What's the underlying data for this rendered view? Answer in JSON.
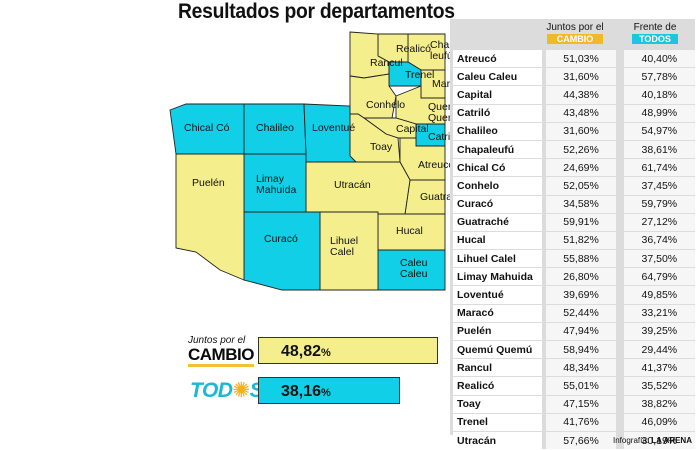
{
  "title": "Resultados por departamentos",
  "colors": {
    "jpc": "#f4ee8c",
    "todos": "#10cfe6",
    "border": "#222222"
  },
  "map_regions": [
    {
      "name": "Chapaleufú",
      "label": "Chapa\nleufú",
      "winner": "jpc"
    },
    {
      "name": "Realicó",
      "label": "Realicó",
      "winner": "jpc"
    },
    {
      "name": "Rancul",
      "label": "Rancul",
      "winner": "jpc"
    },
    {
      "name": "Trenel",
      "label": "Trenel",
      "winner": "todos"
    },
    {
      "name": "Maracó",
      "label": "Maracó",
      "winner": "jpc"
    },
    {
      "name": "Conhelo",
      "label": "Conhelo",
      "winner": "jpc"
    },
    {
      "name": "Quemú Quemú",
      "label": "Quemú\nQuemú",
      "winner": "jpc"
    },
    {
      "name": "Capital",
      "label": "Capital",
      "winner": "jpc"
    },
    {
      "name": "Catriló",
      "label": "Catriló",
      "winner": "todos"
    },
    {
      "name": "Toay",
      "label": "Toay",
      "winner": "jpc"
    },
    {
      "name": "Atreucó",
      "label": "Atreucó",
      "winner": "jpc"
    },
    {
      "name": "Guatraché",
      "label": "Guatraché",
      "winner": "jpc"
    },
    {
      "name": "Hucal",
      "label": "Hucal",
      "winner": "jpc"
    },
    {
      "name": "Caleu Caleu",
      "label": "Caleu\nCaleu",
      "winner": "todos"
    },
    {
      "name": "Lihuel Calel",
      "label": "Lihuel\nCalel",
      "winner": "jpc"
    },
    {
      "name": "Utracán",
      "label": "Utracán",
      "winner": "jpc"
    },
    {
      "name": "Curacó",
      "label": "Curacó",
      "winner": "todos"
    },
    {
      "name": "Limay Mahuida",
      "label": "Limay\nMahuida",
      "winner": "todos"
    },
    {
      "name": "Puelén",
      "label": "Puelén",
      "winner": "jpc"
    },
    {
      "name": "Chical Có",
      "label": "Chical Có",
      "winner": "todos"
    },
    {
      "name": "Chalileo",
      "label": "Chalileo",
      "winner": "todos"
    },
    {
      "name": "Loventué",
      "label": "Loventué",
      "winner": "todos"
    }
  ],
  "summary": {
    "jpc": {
      "logo_line1": "Juntos por el",
      "logo_line2": "CAMBIO",
      "value": "48,82",
      "unit": "%"
    },
    "todos": {
      "logo_pre": "TOD",
      "logo_sun": "✺",
      "logo_post": "S",
      "value": "38,16",
      "unit": "%"
    }
  },
  "table": {
    "header_jpc": "Juntos por el",
    "header_jpc_tag": "CAMBIO",
    "header_todos": "Frente de",
    "header_todos_tag": "TODOS",
    "rows": [
      {
        "dept": "Atreucó",
        "jpc": "51,03%",
        "todos": "40,40%"
      },
      {
        "dept": "Caleu Caleu",
        "jpc": "31,60%",
        "todos": "57,78%"
      },
      {
        "dept": "Capital",
        "jpc": "44,38%",
        "todos": "40,18%"
      },
      {
        "dept": "Catriló",
        "jpc": "43,48%",
        "todos": "48,99%"
      },
      {
        "dept": "Chalileo",
        "jpc": "31,60%",
        "todos": "54,97%"
      },
      {
        "dept": "Chapaleufú",
        "jpc": "52,26%",
        "todos": "38,61%"
      },
      {
        "dept": "Chical Có",
        "jpc": "24,69%",
        "todos": "61,74%"
      },
      {
        "dept": "Conhelo",
        "jpc": "52,05%",
        "todos": "37,45%"
      },
      {
        "dept": "Curacó",
        "jpc": "34,58%",
        "todos": "59,79%"
      },
      {
        "dept": "Guatraché",
        "jpc": "59,91%",
        "todos": "27,12%"
      },
      {
        "dept": "Hucal",
        "jpc": "51,82%",
        "todos": "36,74%"
      },
      {
        "dept": "Lihuel Calel",
        "jpc": "55,88%",
        "todos": "37,50%"
      },
      {
        "dept": "Limay Mahuida",
        "jpc": "26,80%",
        "todos": "64,79%"
      },
      {
        "dept": "Loventué",
        "jpc": "39,69%",
        "todos": "49,85%"
      },
      {
        "dept": "Maracó",
        "jpc": "52,44%",
        "todos": "33,21%"
      },
      {
        "dept": "Puelén",
        "jpc": "47,94%",
        "todos": "39,25%"
      },
      {
        "dept": "Quemú Quemú",
        "jpc": "58,94%",
        "todos": "29,44%"
      },
      {
        "dept": "Rancul",
        "jpc": "48,34%",
        "todos": "41,37%"
      },
      {
        "dept": "Realicó",
        "jpc": "55,01%",
        "todos": "35,52%"
      },
      {
        "dept": "Toay",
        "jpc": "47,15%",
        "todos": "38,82%"
      },
      {
        "dept": "Trenel",
        "jpc": "41,76%",
        "todos": "46,09%"
      },
      {
        "dept": "Utracán",
        "jpc": "57,66%",
        "todos": "30,19%"
      }
    ]
  },
  "credit_prefix": "Infografía:",
  "credit_source": "LA ARENA"
}
